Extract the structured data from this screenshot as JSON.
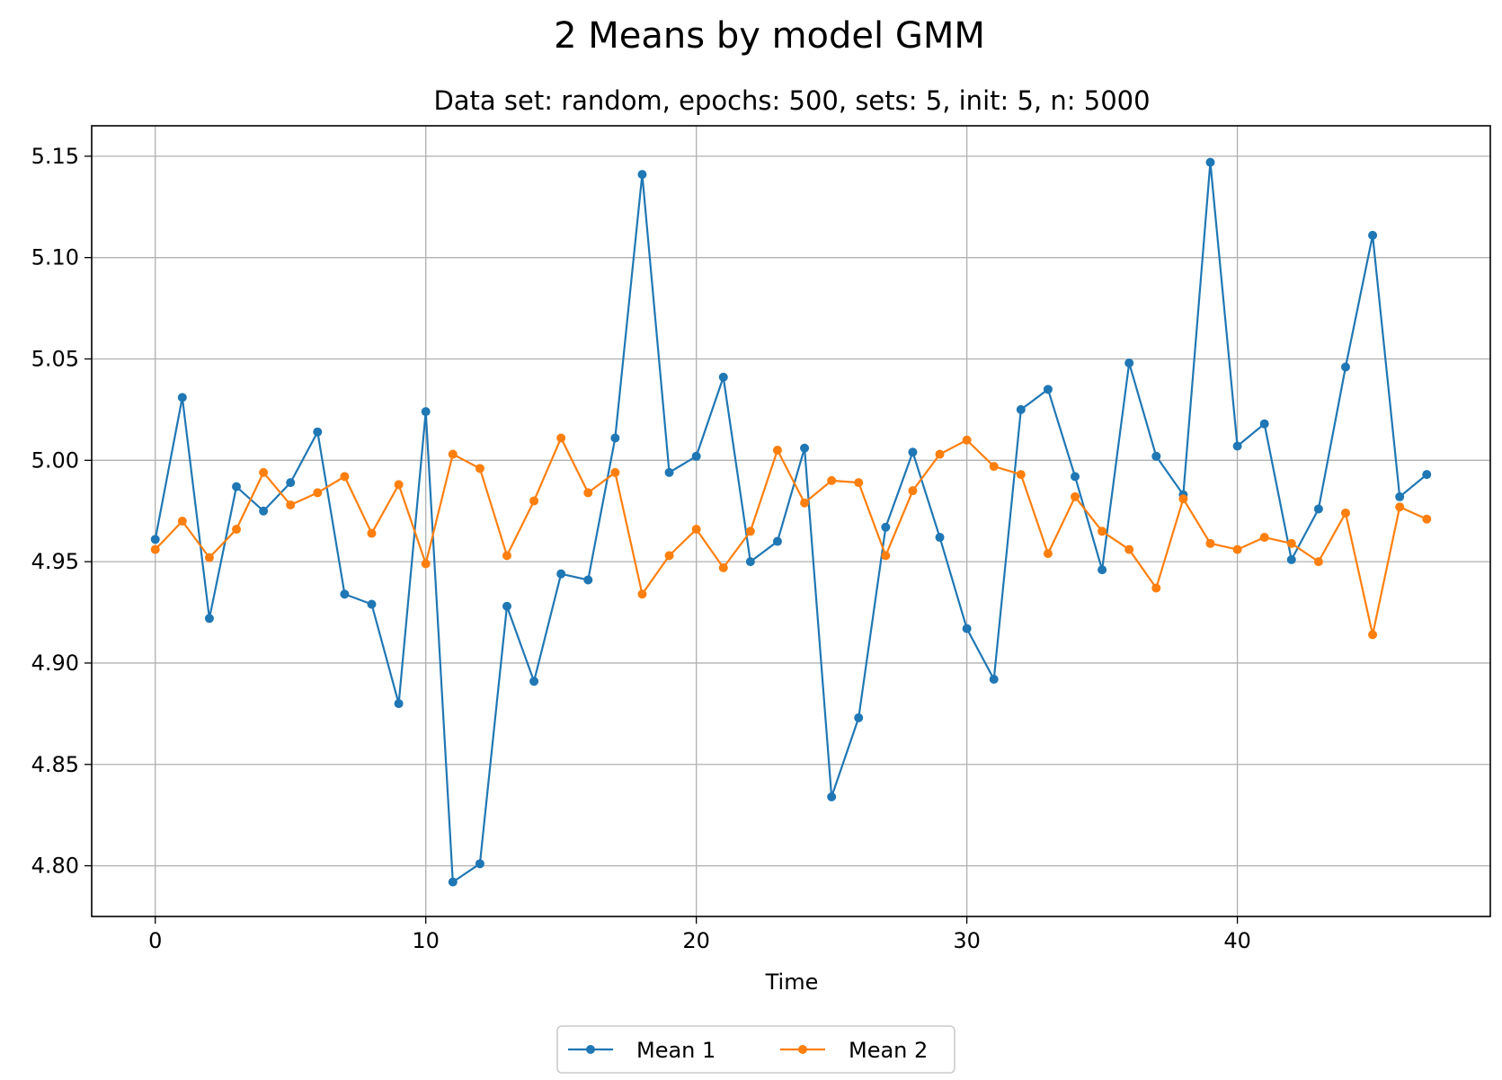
{
  "chart_data": {
    "type": "line",
    "title": "2 Means by model GMM",
    "subtitle": "Data set: random, epochs: 500, sets: 5, init: 5, n: 5000",
    "xlabel": "Time",
    "ylabel": "",
    "xlim": [
      -2.35,
      49.35
    ],
    "ylim": [
      4.775,
      5.165
    ],
    "xticks": [
      0,
      10,
      20,
      30,
      40
    ],
    "yticks": [
      4.8,
      4.85,
      4.9,
      4.95,
      5.0,
      5.05,
      5.1,
      5.15
    ],
    "grid": true,
    "legend_position": "bottom-center",
    "x": [
      0,
      1,
      2,
      3,
      4,
      5,
      6,
      7,
      8,
      9,
      10,
      11,
      12,
      13,
      14,
      15,
      16,
      17,
      18,
      19,
      20,
      21,
      22,
      23,
      24,
      25,
      26,
      27,
      28,
      29,
      30,
      31,
      32,
      33,
      34,
      35,
      36,
      37,
      38,
      39,
      40,
      41,
      42,
      43,
      44,
      45,
      46,
      47
    ],
    "series": [
      {
        "name": "Mean 1",
        "color": "#1f77b4",
        "values": [
          4.961,
          5.031,
          4.922,
          4.987,
          4.975,
          4.989,
          5.014,
          4.934,
          4.929,
          4.88,
          5.024,
          4.792,
          4.801,
          4.928,
          4.891,
          4.944,
          4.941,
          5.011,
          5.141,
          4.994,
          5.002,
          5.041,
          4.95,
          4.96,
          5.006,
          4.834,
          4.873,
          4.967,
          5.004,
          4.962,
          4.917,
          4.892,
          5.025,
          5.035,
          4.992,
          4.946,
          5.048,
          5.002,
          4.983,
          5.147,
          5.007,
          5.018,
          4.951,
          4.976,
          5.046,
          5.111,
          4.982,
          4.993
        ]
      },
      {
        "name": "Mean 2",
        "color": "#ff7f0e",
        "values": [
          4.956,
          4.97,
          4.952,
          4.966,
          4.994,
          4.978,
          4.984,
          4.992,
          4.964,
          4.988,
          4.949,
          5.003,
          4.996,
          4.953,
          4.98,
          5.011,
          4.984,
          4.994,
          4.934,
          4.953,
          4.966,
          4.947,
          4.965,
          5.005,
          4.979,
          4.99,
          4.989,
          4.953,
          4.985,
          5.003,
          5.01,
          4.997,
          4.993,
          4.954,
          4.982,
          4.965,
          4.956,
          4.937,
          4.981,
          4.959,
          4.956,
          4.962,
          4.959,
          4.95,
          4.974,
          4.914,
          4.977,
          4.971
        ]
      }
    ]
  }
}
